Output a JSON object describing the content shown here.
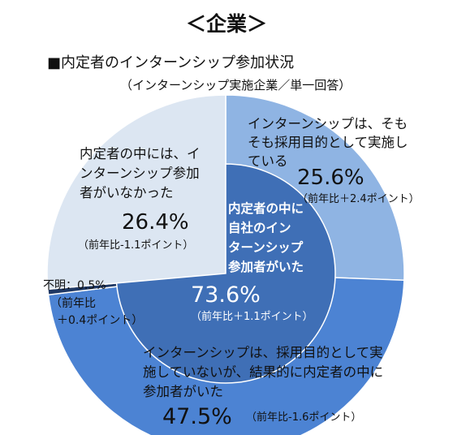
{
  "chart_data": {
    "type": "pie",
    "title": "＜企業＞",
    "subtitle": "■内定者のインターンシップ参加状況",
    "note": "（インターンシップ実施企業／単一回答）",
    "inner_ring": {
      "slices": [
        {
          "label_lines": [
            "内定者の中に",
            "自社のイン",
            "ターンシップ",
            "参加者がいた"
          ],
          "value": 73.6,
          "value_label": "73.6%",
          "change": "（前年比＋1.1ポイント）",
          "color": "#3f6fb6"
        }
      ]
    },
    "outer_ring": {
      "slices": [
        {
          "label_lines": [
            "インターンシップは、そも",
            "そも採用目的として実施し",
            "ている"
          ],
          "value": 25.6,
          "value_label": "25.6%",
          "change": "（前年比＋2.4ポイント）",
          "color": "#8fb4e3"
        },
        {
          "label_lines": [
            "インターンシップは、採用目的として実",
            "施していないが、結果的に内定者の中に",
            "参加者がいた"
          ],
          "value": 47.5,
          "value_label": "47.5%",
          "change": "（前年比-1.6ポイント）",
          "color": "#4c83d3"
        },
        {
          "label_lines": [
            "不明：0.5%",
            "（前年比",
            "＋0.4ポイント）"
          ],
          "value": 0.5,
          "value_label": "",
          "change": "",
          "color": "#1f3864"
        },
        {
          "label_lines": [
            "内定者の中には、イ",
            "ンターンシップ参加",
            "者がいなかった"
          ],
          "value": 26.4,
          "value_label": "26.4%",
          "change": "（前年比-1.1ポイント）",
          "color": "#dce6f2"
        }
      ]
    }
  }
}
